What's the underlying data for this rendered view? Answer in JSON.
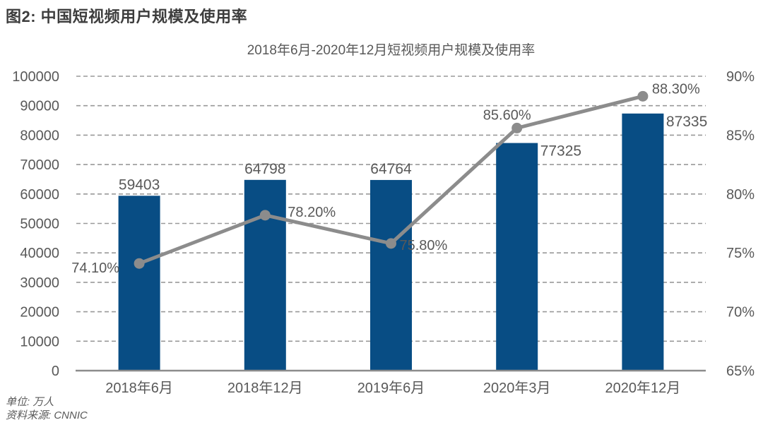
{
  "header": {
    "title": "图2: 中国短视频用户规模及使用率"
  },
  "chart_data": {
    "type": "combo-bar-line",
    "title": "2018年6月-2020年12月短视频用户规模及使用率",
    "categories": [
      "2018年6月",
      "2018年12月",
      "2019年6月",
      "2020年3月",
      "2020年12月"
    ],
    "series": [
      {
        "name": "短视频用户规模",
        "type": "bar",
        "axis": "left",
        "color": "#084d84",
        "values": [
          59403,
          64798,
          64764,
          77325,
          87335
        ],
        "labels": [
          "59403",
          "64798",
          "64764",
          "77325",
          "87335"
        ]
      },
      {
        "name": "使用率",
        "type": "line",
        "axis": "right",
        "color": "#8c8c8c",
        "values": [
          74.1,
          78.2,
          75.8,
          85.6,
          88.3
        ],
        "labels": [
          "74.10%",
          "78.20%",
          "75.80%",
          "85.60%",
          "88.30%"
        ]
      }
    ],
    "left_axis": {
      "min": 0,
      "max": 100000,
      "step": 10000,
      "ticks": [
        "100000",
        "90000",
        "80000",
        "70000",
        "60000",
        "50000",
        "40000",
        "30000",
        "20000",
        "10000",
        "0"
      ]
    },
    "right_axis": {
      "min": 65,
      "max": 90,
      "step": 5,
      "ticks": [
        "90%",
        "85%",
        "80%",
        "75%",
        "70%",
        "65%"
      ]
    },
    "grid": "horizontal-dashed",
    "legend_position": "none"
  },
  "footer": {
    "unit": "单位: 万人",
    "source": "资料来源: CNNIC"
  },
  "colors": {
    "bar": "#084d84",
    "line": "#8c8c8c",
    "grid": "#999999",
    "axis": "#8c8c8c",
    "text": "#595959",
    "title": "#3d3d3d"
  }
}
